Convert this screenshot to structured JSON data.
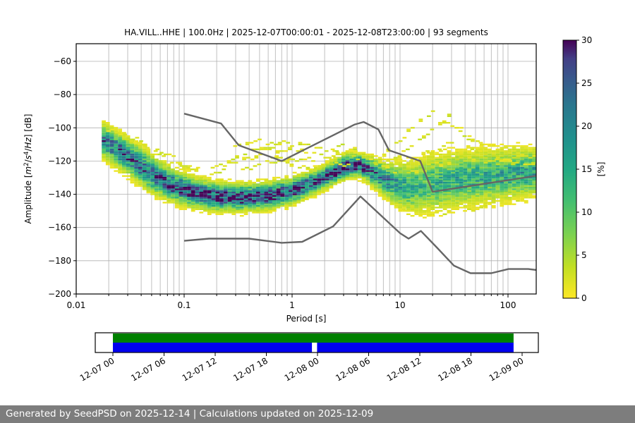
{
  "figure": {
    "footer": "Generated by SeedPSD on 2025-12-14 | Calculations updated on 2025-12-09",
    "footer_bg": "#7d7d7d",
    "footer_text_color": "#ffffff"
  },
  "chart_data": {
    "type": "heatmap",
    "title": "HA.VILL..HHE | 100.0Hz | 2025-12-07T00:00:01 - 2025-12-08T23:00:00 | 93 segments",
    "title_parts": {
      "station": "HA.VILL..HHE",
      "sampling_rate": "100.0Hz",
      "time_range": "2025-12-07T00:00:01 - 2025-12-08T23:00:00",
      "segments": "93 segments"
    },
    "xlabel": "Period [s]",
    "ylabel": "Amplitude [m²/s⁴/Hz] [dB]",
    "ylabel_parts": [
      {
        "text": "Amplitude ["
      },
      {
        "text": "m",
        "italic": true
      },
      {
        "text": "2",
        "sup": true
      },
      {
        "text": "/"
      },
      {
        "text": "s",
        "italic": true
      },
      {
        "text": "4",
        "sup": true
      },
      {
        "text": "/"
      },
      {
        "text": "Hz",
        "italic": true
      },
      {
        "text": "] [dB]"
      }
    ],
    "xscale": "log",
    "xlim": [
      0.01,
      182
    ],
    "ylim": [
      -200,
      -50
    ],
    "xtick_values": [
      0.01,
      0.1,
      1,
      10,
      100
    ],
    "xtick_labels": [
      "0.01",
      "0.1",
      "1",
      "10",
      "100"
    ],
    "ytick_values": [
      -60,
      -80,
      -100,
      -120,
      -140,
      -160,
      -180,
      -200
    ],
    "ytick_labels": [
      "−60",
      "−80",
      "−100",
      "−120",
      "−140",
      "−160",
      "−180",
      "−200"
    ],
    "grid": true,
    "grid_color": "#b0b0b0",
    "colorbar": {
      "label": "[%]",
      "min": 0,
      "max": 30,
      "tick_values": [
        0,
        5,
        10,
        15,
        20,
        25,
        30
      ],
      "tick_labels": [
        "0",
        "5",
        "10",
        "15",
        "20",
        "25",
        "30"
      ],
      "colormap": "viridis_reversed",
      "stops": [
        {
          "t": 0.0,
          "c": "#fde725"
        },
        {
          "t": 0.12,
          "c": "#c2df23"
        },
        {
          "t": 0.25,
          "c": "#7ad151"
        },
        {
          "t": 0.38,
          "c": "#42be71"
        },
        {
          "t": 0.5,
          "c": "#22a884"
        },
        {
          "t": 0.62,
          "c": "#20908d"
        },
        {
          "t": 0.75,
          "c": "#2a768e"
        },
        {
          "t": 0.85,
          "c": "#38598c"
        },
        {
          "t": 0.93,
          "c": "#433e85"
        },
        {
          "t": 1.0,
          "c": "#440154"
        }
      ]
    },
    "psd_distribution": {
      "period_step_octaves": 0.125,
      "db_bin_width": 1,
      "period_range": [
        0.018,
        183
      ],
      "mode_curve": [
        [
          0.018,
          -108
        ],
        [
          0.03,
          -117
        ],
        [
          0.05,
          -128
        ],
        [
          0.08,
          -135
        ],
        [
          0.12,
          -139
        ],
        [
          0.2,
          -141.5
        ],
        [
          0.35,
          -142
        ],
        [
          0.6,
          -141
        ],
        [
          1.0,
          -138
        ],
        [
          1.6,
          -133
        ],
        [
          2.5,
          -126.5
        ],
        [
          3.2,
          -123
        ],
        [
          4.2,
          -122.5
        ],
        [
          5.5,
          -126
        ],
        [
          7,
          -130.5
        ],
        [
          9,
          -134
        ],
        [
          12,
          -136
        ],
        [
          16,
          -135
        ],
        [
          22,
          -133
        ],
        [
          35,
          -131
        ],
        [
          60,
          -129.5
        ],
        [
          100,
          -128
        ],
        [
          183,
          -126.5
        ]
      ],
      "sigma_curve": [
        [
          0.018,
          5
        ],
        [
          0.04,
          5.5
        ],
        [
          0.1,
          4.5
        ],
        [
          0.3,
          4
        ],
        [
          0.8,
          4
        ],
        [
          2,
          3.5
        ],
        [
          4.5,
          3.5
        ],
        [
          7,
          5
        ],
        [
          12,
          7.5
        ],
        [
          20,
          8.5
        ],
        [
          50,
          8
        ],
        [
          100,
          7.5
        ],
        [
          183,
          7
        ]
      ],
      "peak_percent_curve": [
        [
          0.018,
          22
        ],
        [
          0.04,
          25
        ],
        [
          0.1,
          28
        ],
        [
          0.3,
          30
        ],
        [
          0.7,
          28
        ],
        [
          1.5,
          26
        ],
        [
          3,
          30
        ],
        [
          4.5,
          28
        ],
        [
          7,
          22
        ],
        [
          10,
          16
        ],
        [
          15,
          13
        ],
        [
          25,
          14
        ],
        [
          50,
          15
        ],
        [
          100,
          16
        ],
        [
          183,
          17
        ]
      ],
      "outlier_strands": [
        [
          [
            6,
            -122
          ],
          [
            9,
            -110
          ],
          [
            14,
            -98
          ],
          [
            20,
            -90
          ],
          [
            26,
            -92
          ],
          [
            35,
            -99
          ],
          [
            50,
            -108
          ],
          [
            70,
            -116
          ],
          [
            90,
            -120
          ]
        ],
        [
          [
            7,
            -124
          ],
          [
            11,
            -114
          ],
          [
            18,
            -104
          ],
          [
            27,
            -97
          ],
          [
            40,
            -104
          ],
          [
            60,
            -112
          ],
          [
            85,
            -118
          ],
          [
            120,
            -121
          ]
        ],
        [
          [
            9,
            -126
          ],
          [
            15,
            -117
          ],
          [
            30,
            -109
          ],
          [
            50,
            -113
          ],
          [
            80,
            -119
          ],
          [
            130,
            -122
          ],
          [
            183,
            -121
          ]
        ],
        [
          [
            12,
            -128
          ],
          [
            20,
            -123
          ],
          [
            40,
            -117
          ],
          [
            80,
            -121
          ],
          [
            130,
            -118
          ],
          [
            183,
            -116
          ]
        ],
        [
          [
            0.13,
            -131
          ],
          [
            0.2,
            -124
          ],
          [
            0.35,
            -116
          ],
          [
            0.6,
            -112
          ],
          [
            0.9,
            -113
          ],
          [
            1.4,
            -116
          ],
          [
            2.2,
            -113
          ],
          [
            3.2,
            -111
          ],
          [
            4.5,
            -116
          ],
          [
            6,
            -121
          ]
        ],
        [
          [
            0.18,
            -129
          ],
          [
            0.3,
            -121
          ],
          [
            0.5,
            -117
          ],
          [
            0.8,
            -118
          ],
          [
            1.3,
            -120
          ],
          [
            2,
            -117
          ],
          [
            3,
            -116
          ],
          [
            4.2,
            -120
          ]
        ],
        [
          [
            0.35,
            -125
          ],
          [
            0.6,
            -120
          ],
          [
            1,
            -122
          ],
          [
            1.6,
            -124
          ],
          [
            2.4,
            -121
          ],
          [
            3.5,
            -124
          ]
        ],
        [
          [
            0.25,
            -113
          ],
          [
            0.4,
            -109
          ],
          [
            0.7,
            -108
          ],
          [
            1.1,
            -110
          ],
          [
            1.8,
            -112
          ],
          [
            2.6,
            -114
          ]
        ],
        [
          [
            0.02,
            -101
          ],
          [
            0.035,
            -107
          ],
          [
            0.06,
            -114
          ],
          [
            0.1,
            -122
          ],
          [
            0.15,
            -126
          ]
        ],
        [
          [
            0.025,
            -104
          ],
          [
            0.045,
            -112
          ],
          [
            0.08,
            -120
          ],
          [
            0.13,
            -127
          ]
        ],
        [
          [
            10,
            -147
          ],
          [
            16,
            -151
          ],
          [
            25,
            -152
          ],
          [
            40,
            -149
          ],
          [
            70,
            -146
          ],
          [
            110,
            -143
          ],
          [
            183,
            -141
          ]
        ]
      ]
    },
    "noise_models": {
      "color": "#666666",
      "nhnm": [
        [
          0.1,
          -91.5
        ],
        [
          0.22,
          -97.4
        ],
        [
          0.32,
          -110.5
        ],
        [
          0.8,
          -120
        ],
        [
          3.8,
          -98
        ],
        [
          4.6,
          -96.5
        ],
        [
          6.3,
          -101
        ],
        [
          7.9,
          -113.5
        ],
        [
          15.4,
          -120
        ],
        [
          20,
          -138.5
        ],
        [
          354.8,
          -126
        ]
      ],
      "nlnm": [
        [
          0.1,
          -168
        ],
        [
          0.17,
          -166.7
        ],
        [
          0.4,
          -166.7
        ],
        [
          0.8,
          -169.2
        ],
        [
          1.24,
          -168.6
        ],
        [
          2.4,
          -159.3
        ],
        [
          4.3,
          -141.3
        ],
        [
          10,
          -163.4
        ],
        [
          12,
          -166.7
        ],
        [
          15.6,
          -162.1
        ],
        [
          21.9,
          -172
        ],
        [
          31.6,
          -183
        ],
        [
          45,
          -187.5
        ],
        [
          70,
          -187.5
        ],
        [
          101,
          -185
        ],
        [
          154,
          -185
        ],
        [
          328,
          -187.5
        ]
      ]
    }
  },
  "timeline": {
    "tick_labels": [
      "12-07 00",
      "12-07 06",
      "12-07 12",
      "12-07 18",
      "12-08 00",
      "12-08 06",
      "12-08 12",
      "12-08 18",
      "12-09 00"
    ],
    "tick_interval_hours": 6,
    "total_hours": 48,
    "green_bar_color": "#008000",
    "blue_bar_color": "#0000ee",
    "green_segments_hours": [
      [
        0,
        47
      ]
    ],
    "blue_segments_hours": [
      [
        0,
        23.35
      ],
      [
        23.95,
        47
      ]
    ]
  }
}
